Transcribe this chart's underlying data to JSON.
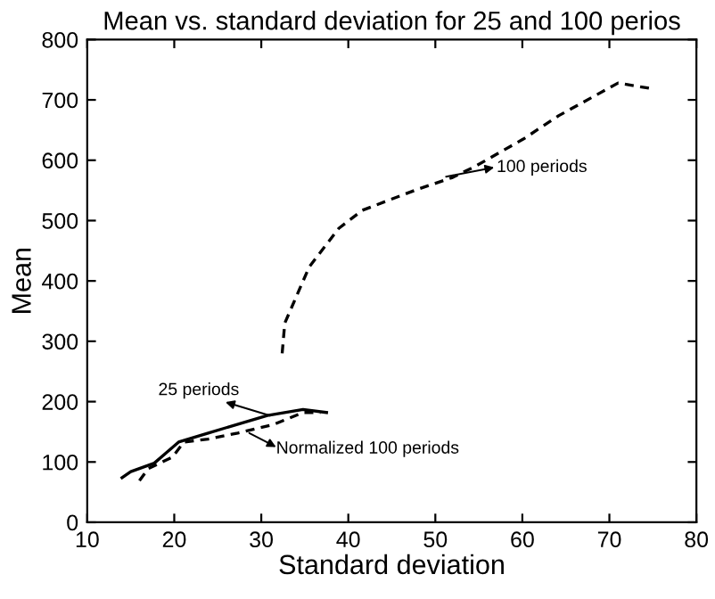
{
  "chart_data": {
    "type": "line",
    "title": "Mean vs. standard deviation for 25 and 100 perios",
    "xlabel": "Standard deviation",
    "ylabel": "Mean",
    "xlim": [
      10,
      80
    ],
    "xticks": [
      10,
      20,
      30,
      40,
      50,
      60,
      70,
      80
    ],
    "ylim": [
      0,
      800
    ],
    "yticks": [
      0,
      100,
      200,
      300,
      400,
      500,
      600,
      700,
      800
    ],
    "grid": false,
    "legend": false,
    "marker": "none",
    "series": [
      {
        "color": "#000000",
        "line_style": "solid",
        "x": [
          14,
          15,
          17.7,
          20.5,
          23.9,
          30.7,
          34.8,
          37.5
        ],
        "values": [
          74,
          84,
          98,
          133,
          148,
          177,
          187,
          182
        ]
      },
      {
        "color": "#000000",
        "line_style": "dashed",
        "x": [
          32.4,
          32.7,
          35.5,
          38.9,
          41.6,
          47.8,
          51.9,
          54.6,
          60.1,
          64.2,
          71,
          75.1
        ],
        "values": [
          280,
          330,
          423,
          487,
          517,
          551,
          571,
          590,
          635,
          674,
          728,
          718
        ]
      },
      {
        "color": "#000000",
        "line_style": "dashed",
        "x": [
          16,
          17,
          19.8,
          21.1,
          23.9,
          27.3,
          31.4,
          34.8,
          36.8
        ],
        "values": [
          69,
          89,
          108,
          133,
          138,
          148,
          162,
          182,
          182
        ]
      }
    ],
    "annotations": [
      "25 periods",
      "Normalized 100 periods",
      "100 periods"
    ]
  }
}
